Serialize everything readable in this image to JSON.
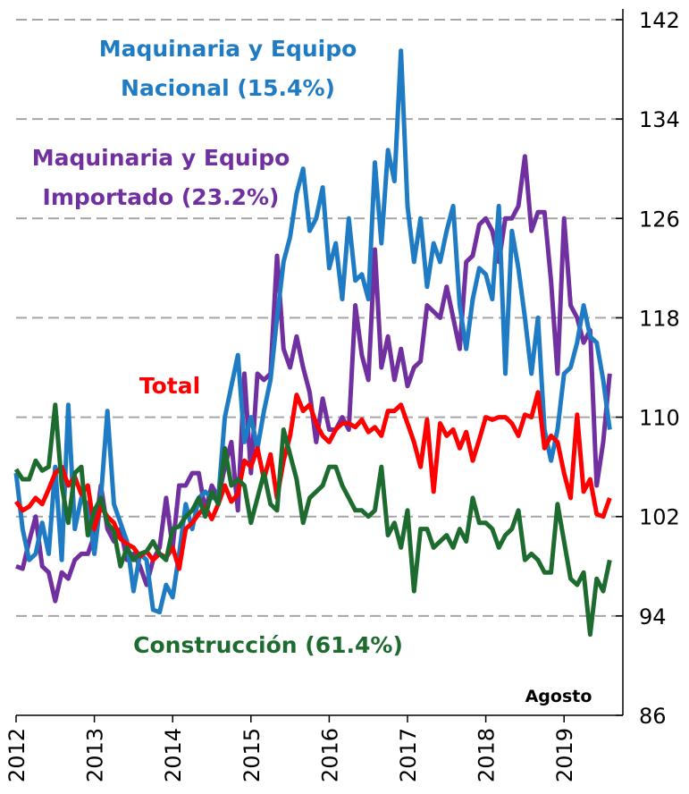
{
  "chart_data": {
    "type": "line",
    "categories": [
      "2012",
      null,
      null,
      null,
      null,
      null,
      null,
      null,
      null,
      null,
      null,
      null,
      "2013",
      null,
      null,
      null,
      null,
      null,
      null,
      null,
      null,
      null,
      null,
      null,
      "2014",
      null,
      null,
      null,
      null,
      null,
      null,
      null,
      null,
      null,
      null,
      null,
      "2015",
      null,
      null,
      null,
      null,
      null,
      null,
      null,
      null,
      null,
      null,
      null,
      "2016",
      null,
      null,
      null,
      null,
      null,
      null,
      null,
      null,
      null,
      null,
      null,
      "2017",
      null,
      null,
      null,
      null,
      null,
      null,
      null,
      null,
      null,
      null,
      null,
      "2018",
      null,
      null,
      null,
      null,
      null,
      null,
      null,
      null,
      null,
      null,
      null,
      "2019",
      null,
      null,
      null,
      null,
      null,
      null,
      null
    ],
    "series": [
      {
        "name": "Maquinaria y Equipo Nacional (15.4%)",
        "color": "#1f7cc4",
        "values": [
          105.5,
          101.0,
          98.5,
          99.0,
          101.5,
          99.0,
          106.0,
          98.5,
          111.0,
          101.0,
          103.5,
          103.0,
          99.0,
          103.5,
          110.5,
          103.0,
          101.5,
          100.0,
          96.0,
          99.0,
          98.5,
          94.5,
          94.3,
          96.5,
          95.5,
          99.0,
          103.0,
          101.0,
          103.5,
          104.0,
          103.5,
          103.5,
          110.0,
          112.5,
          115.0,
          108.0,
          110.0,
          107.5,
          110.5,
          113.0,
          118.0,
          122.5,
          124.5,
          128.0,
          130.0,
          125.0,
          126.0,
          128.5,
          122.0,
          124.0,
          119.5,
          126.0,
          121.0,
          121.5,
          119.5,
          130.5,
          124.0,
          131.5,
          129.0,
          139.5,
          127.0,
          122.5,
          126.0,
          120.5,
          124.0,
          122.5,
          125.0,
          127.0,
          119.0,
          115.5,
          119.5,
          122.0,
          121.5,
          119.5,
          127.0,
          113.5,
          125.0,
          122.0,
          118.0,
          113.5,
          118.0,
          109.0,
          106.5,
          109.0,
          113.5,
          114.0,
          116.0,
          119.0,
          116.5,
          116.0,
          113.0,
          109.0
        ]
      },
      {
        "name": "Maquinaria y Equipo Importado (23.2%)",
        "color": "#7030a0",
        "values": [
          98.0,
          97.8,
          100.0,
          102.0,
          98.0,
          97.5,
          95.2,
          97.5,
          97.0,
          98.5,
          99.0,
          99.0,
          100.5,
          104.5,
          101.0,
          100.0,
          101.0,
          98.5,
          99.0,
          98.0,
          96.5,
          98.5,
          99.5,
          103.5,
          99.5,
          104.5,
          104.5,
          105.5,
          105.5,
          102.5,
          104.5,
          103.5,
          106.0,
          108.0,
          102.5,
          113.5,
          105.5,
          113.5,
          113.0,
          113.5,
          123.0,
          115.5,
          114.0,
          116.5,
          114.0,
          112.0,
          108.0,
          111.5,
          109.0,
          109.0,
          110.0,
          109.0,
          119.0,
          115.0,
          113.0,
          123.5,
          114.0,
          116.5,
          113.0,
          115.5,
          112.5,
          114.0,
          114.5,
          119.0,
          118.5,
          118.0,
          120.5,
          118.0,
          115.5,
          122.5,
          123.0,
          125.5,
          126.0,
          125.0,
          122.5,
          126.0,
          126.0,
          127.0,
          131.0,
          125.0,
          126.5,
          126.5,
          121.0,
          113.5,
          126.0,
          119.0,
          118.0,
          116.0,
          117.0,
          104.5,
          108.0,
          113.5
        ]
      },
      {
        "name": "Total",
        "color": "#ff0000",
        "values": [
          103.2,
          102.5,
          102.8,
          103.5,
          103.0,
          104.2,
          105.5,
          106.0,
          104.5,
          105.2,
          103.8,
          104.5,
          101.0,
          102.8,
          102.0,
          101.5,
          100.2,
          99.8,
          99.5,
          98.8,
          99.2,
          98.5,
          99.0,
          98.7,
          99.5,
          97.8,
          101.0,
          101.5,
          102.2,
          102.8,
          101.8,
          103.0,
          104.5,
          103.2,
          103.8,
          106.5,
          106.0,
          107.5,
          105.0,
          107.0,
          103.5,
          106.5,
          108.5,
          111.8,
          110.5,
          111.0,
          109.5,
          108.5,
          108.0,
          109.0,
          109.5,
          109.5,
          109.2,
          109.8,
          108.8,
          109.2,
          108.5,
          110.5,
          110.5,
          111.0,
          109.5,
          108.0,
          106.0,
          109.8,
          104.0,
          109.5,
          108.5,
          109.0,
          107.5,
          108.8,
          106.5,
          108.2,
          110.0,
          109.8,
          110.0,
          110.0,
          109.5,
          108.5,
          110.2,
          110.0,
          112.0,
          107.5,
          108.5,
          108.0,
          105.5,
          103.5,
          110.2,
          104.0,
          105.0,
          102.2,
          102.0,
          103.5
        ]
      },
      {
        "name": "Construcción (61.4%)",
        "color": "#1e6b30",
        "values": [
          105.8,
          105.0,
          105.0,
          106.5,
          105.7,
          106.0,
          111.0,
          104.5,
          101.5,
          105.5,
          106.0,
          100.5,
          102.5,
          103.5,
          101.5,
          100.8,
          98.0,
          99.5,
          98.5,
          99.0,
          99.2,
          100.0,
          99.0,
          98.5,
          101.0,
          101.2,
          102.0,
          102.5,
          103.5,
          102.0,
          104.0,
          103.0,
          107.5,
          104.5,
          105.0,
          104.5,
          101.5,
          103.5,
          105.5,
          103.0,
          102.5,
          109.0,
          107.0,
          105.0,
          101.5,
          103.5,
          104.0,
          104.5,
          106.0,
          106.0,
          104.5,
          103.5,
          102.5,
          102.5,
          102.0,
          102.5,
          106.0,
          100.5,
          101.5,
          99.5,
          102.5,
          96.0,
          101.0,
          101.0,
          99.5,
          100.0,
          100.5,
          99.5,
          101.0,
          100.0,
          103.5,
          101.5,
          101.5,
          101.0,
          99.5,
          100.5,
          101.0,
          102.5,
          98.5,
          99.0,
          98.5,
          97.5,
          97.5,
          103.0,
          100.0,
          97.0,
          96.5,
          97.5,
          92.5,
          97.0,
          96.0,
          98.5
        ]
      }
    ],
    "annotations": [
      "Agosto"
    ],
    "ylim": [
      86,
      142
    ],
    "yticks": [
      86,
      94,
      102,
      110,
      118,
      126,
      134,
      142
    ],
    "grid": true
  }
}
